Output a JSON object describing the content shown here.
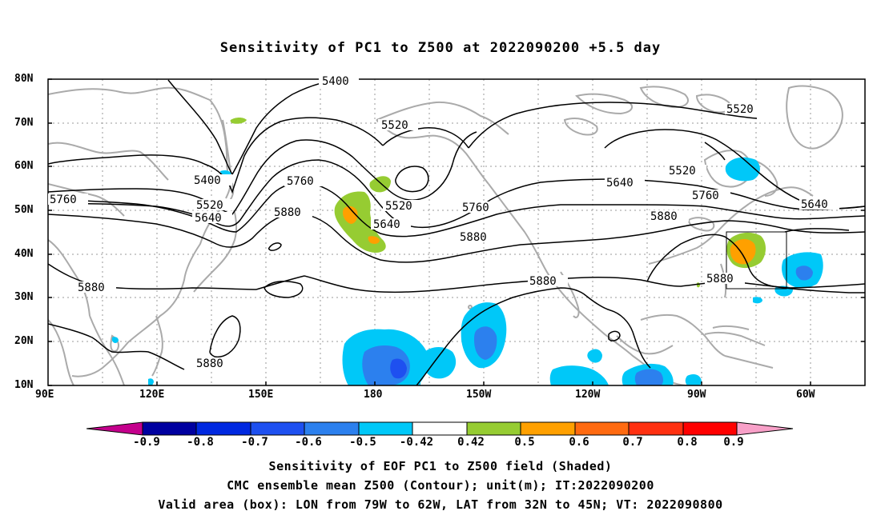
{
  "title": "Sensitivity of PC1 to Z500 at 2022090200 +5.5 day",
  "lat_labels": [
    "80N",
    "70N",
    "60N",
    "50N",
    "40N",
    "30N",
    "20N",
    "10N"
  ],
  "lon_labels": [
    "90E",
    "120E",
    "150E",
    "180",
    "150W",
    "120W",
    "90W",
    "60W"
  ],
  "contour_labels": [
    "5400",
    "5520",
    "5640",
    "5760",
    "5880",
    "5400",
    "5520",
    "5760",
    "5880",
    "5640",
    "5520",
    "5760",
    "5880",
    "5640",
    "5880",
    "5520",
    "5520",
    "5640",
    "5760",
    "5880",
    "5640",
    "5880",
    "5880"
  ],
  "colorbar": {
    "labels": [
      "-0.9",
      "-0.8",
      "-0.7",
      "-0.6",
      "-0.5",
      "-0.42",
      "0.42",
      "0.5",
      "0.6",
      "0.7",
      "0.8",
      "0.9"
    ],
    "colors": [
      "#c4008c",
      "#0000a0",
      "#0028e0",
      "#1e50f0",
      "#2c80ee",
      "#00c8f8",
      "#ffffff",
      "#96cc32",
      "#ffa000",
      "#ff6a10",
      "#ff3010",
      "#ff0000",
      "#f8a0c8"
    ]
  },
  "caption": {
    "line1": "Sensitivity of EOF PC1 to Z500 field (Shaded)",
    "line2": "CMC ensemble mean Z500 (Contour); unit(m); IT:2022090200",
    "line3": "Valid area (box): LON from 79W to 62W, LAT from 32N to 45N; VT: 2022090800"
  },
  "valid_box": {
    "lon_from": "79W",
    "lon_to": "62W",
    "lat_from": "32N",
    "lat_to": "45N"
  }
}
